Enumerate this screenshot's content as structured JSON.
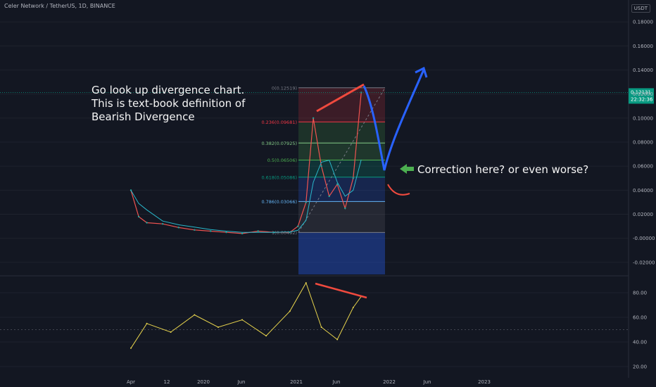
{
  "header": {
    "symbol": "Celer Network / TetherUS, 1D, BINANCE",
    "currency": "USDT"
  },
  "annotations": {
    "text_lines": [
      "Go look up divergence chart.",
      "This is text-book definition of",
      "Bearish Divergence"
    ],
    "correction": "Correction here? or even worse?"
  },
  "colors": {
    "background": "#131722",
    "grid": "#1e222d",
    "axis_text": "#b2b5be",
    "candle_up": "#26a69a",
    "candle_down": "#ef5350",
    "ma": "#2ab7ca",
    "rsi": "#e8d44d",
    "trendline": "#f04a3e",
    "projection": "#2962ff",
    "arrow": "#4caf50",
    "fib_0": "#787b86",
    "fib_236": "#f23645",
    "fib_382": "#81c784",
    "fib_5": "#4caf50",
    "fib_618": "#089981",
    "fib_786": "#64b5f6",
    "fib_1": "#787b86",
    "price_tag": "#089981"
  },
  "chart_data": [
    {
      "type": "line",
      "name": "price",
      "ylim": [
        -0.03,
        0.19
      ],
      "yticks": [
        "0.18000",
        "0.16000",
        "0.14000",
        "0.12000",
        "0.10000",
        "0.08000",
        "0.06000",
        "0.04000",
        "0.02000",
        "-0.00000",
        "-0.02000"
      ],
      "ytick_values": [
        0.18,
        0.16,
        0.14,
        0.12,
        0.1,
        0.08,
        0.06,
        0.04,
        0.02,
        0.0,
        -0.02
      ],
      "xticks": [
        "Apr",
        "12",
        "2020",
        "Jun",
        "2021",
        "Jun",
        "2022",
        "Jun",
        "2023"
      ],
      "last_price": "0.12131",
      "countdown": "22:32:36",
      "x": [
        "2019-04",
        "2019-05",
        "2019-06",
        "2019-08",
        "2019-10",
        "2019-12",
        "2020-02",
        "2020-04",
        "2020-06",
        "2020-08",
        "2020-10",
        "2020-12",
        "2021-01",
        "2021-02",
        "2021-03",
        "2021-04",
        "2021-05",
        "2021-06",
        "2021-07",
        "2021-08",
        "2021-09"
      ],
      "values": [
        0.04,
        0.018,
        0.013,
        0.012,
        0.009,
        0.007,
        0.006,
        0.005,
        0.004,
        0.006,
        0.005,
        0.005,
        0.01,
        0.03,
        0.1,
        0.06,
        0.035,
        0.045,
        0.025,
        0.05,
        0.12131
      ],
      "fib_levels": [
        {
          "label": "0(0.12519)",
          "value": 0.12519
        },
        {
          "label": "0.236(0.09681)",
          "value": 0.09681
        },
        {
          "label": "0.382(0.07925)",
          "value": 0.07925
        },
        {
          "label": "0.5(0.06506)",
          "value": 0.06506
        },
        {
          "label": "0.618(0.05086)",
          "value": 0.05086
        },
        {
          "label": "0.786(0.03066)",
          "value": 0.03066
        },
        {
          "label": "1(0.00492)",
          "value": 0.00492
        }
      ]
    },
    {
      "type": "line",
      "name": "oscillator",
      "ylim": [
        12,
        92
      ],
      "yticks": [
        "80.00",
        "60.00",
        "40.00",
        "20.00"
      ],
      "ytick_values": [
        80,
        60,
        40,
        20
      ],
      "midline": 50,
      "x": [
        "2019-04",
        "2019-06",
        "2019-09",
        "2019-12",
        "2020-03",
        "2020-06",
        "2020-09",
        "2020-12",
        "2021-02",
        "2021-04",
        "2021-06",
        "2021-08",
        "2021-09"
      ],
      "values": [
        35,
        55,
        48,
        62,
        52,
        58,
        45,
        65,
        88,
        52,
        42,
        68,
        77
      ]
    }
  ]
}
